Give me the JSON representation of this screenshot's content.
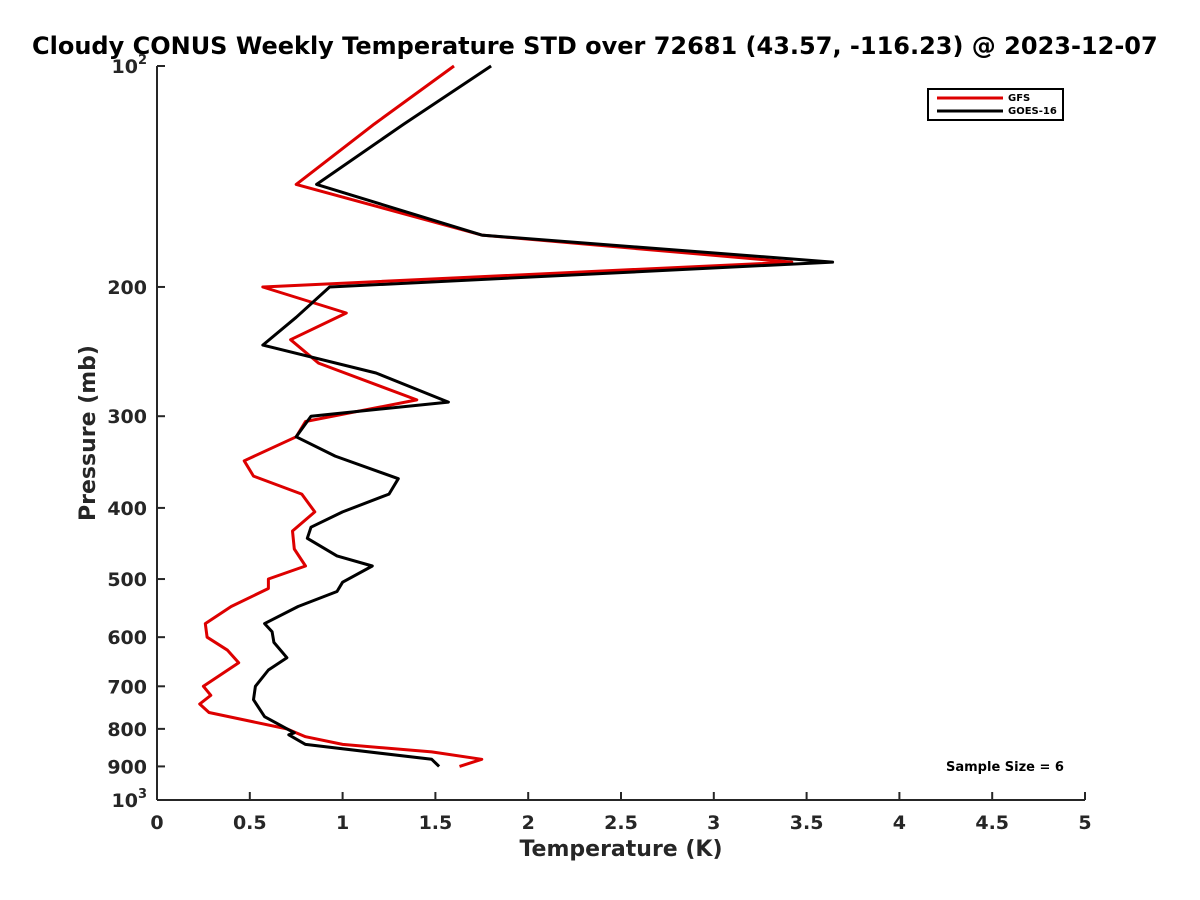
{
  "chart_data": {
    "type": "line",
    "title": "Cloudy CONUS Weekly Temperature STD over 72681 (43.57, -116.23) @ 2023-12-07",
    "xlabel": "Temperature (K)",
    "ylabel": "Pressure (mb)",
    "xlim": [
      0,
      5
    ],
    "ylim": [
      100,
      1000
    ],
    "y_scale": "log",
    "y_direction": "reversed",
    "x_ticks": [
      "0",
      "0.5",
      "1",
      "1.5",
      "2",
      "2.5",
      "3",
      "3.5",
      "4",
      "4.5",
      "5"
    ],
    "y_ticks": [
      {
        "value": 100,
        "label": "10",
        "sup": "2"
      },
      {
        "value": 200,
        "label": "200",
        "sup": ""
      },
      {
        "value": 300,
        "label": "300",
        "sup": ""
      },
      {
        "value": 400,
        "label": "400",
        "sup": ""
      },
      {
        "value": 500,
        "label": "500",
        "sup": ""
      },
      {
        "value": 600,
        "label": "600",
        "sup": ""
      },
      {
        "value": 700,
        "label": "700",
        "sup": ""
      },
      {
        "value": 800,
        "label": "800",
        "sup": ""
      },
      {
        "value": 900,
        "label": "900",
        "sup": ""
      },
      {
        "value": 1000,
        "label": "10",
        "sup": "3"
      }
    ],
    "legend_position": "top-right",
    "grid": false,
    "annotation": "Sample Size = 6",
    "series": [
      {
        "name": "GFS",
        "color": "#dd0000",
        "points": [
          {
            "x": 1.6,
            "p": 100
          },
          {
            "x": 1.17,
            "p": 120
          },
          {
            "x": 0.75,
            "p": 145
          },
          {
            "x": 1.75,
            "p": 170
          },
          {
            "x": 3.42,
            "p": 185
          },
          {
            "x": 0.57,
            "p": 200
          },
          {
            "x": 1.02,
            "p": 217
          },
          {
            "x": 0.72,
            "p": 236
          },
          {
            "x": 0.87,
            "p": 254
          },
          {
            "x": 1.4,
            "p": 285
          },
          {
            "x": 0.8,
            "p": 305
          },
          {
            "x": 0.75,
            "p": 320
          },
          {
            "x": 0.47,
            "p": 345
          },
          {
            "x": 0.52,
            "p": 362
          },
          {
            "x": 0.78,
            "p": 383
          },
          {
            "x": 0.85,
            "p": 405
          },
          {
            "x": 0.73,
            "p": 430
          },
          {
            "x": 0.74,
            "p": 455
          },
          {
            "x": 0.8,
            "p": 480
          },
          {
            "x": 0.6,
            "p": 500
          },
          {
            "x": 0.6,
            "p": 515
          },
          {
            "x": 0.4,
            "p": 545
          },
          {
            "x": 0.26,
            "p": 575
          },
          {
            "x": 0.27,
            "p": 600
          },
          {
            "x": 0.38,
            "p": 625
          },
          {
            "x": 0.44,
            "p": 650
          },
          {
            "x": 0.25,
            "p": 700
          },
          {
            "x": 0.29,
            "p": 720
          },
          {
            "x": 0.23,
            "p": 740
          },
          {
            "x": 0.28,
            "p": 760
          },
          {
            "x": 0.7,
            "p": 800
          },
          {
            "x": 0.8,
            "p": 820
          },
          {
            "x": 1.0,
            "p": 840
          },
          {
            "x": 1.48,
            "p": 860
          },
          {
            "x": 1.75,
            "p": 880
          },
          {
            "x": 1.63,
            "p": 900
          }
        ]
      },
      {
        "name": "GOES-16",
        "color": "#000000",
        "points": [
          {
            "x": 1.8,
            "p": 100
          },
          {
            "x": 1.33,
            "p": 120
          },
          {
            "x": 0.86,
            "p": 145
          },
          {
            "x": 1.75,
            "p": 170
          },
          {
            "x": 3.64,
            "p": 185
          },
          {
            "x": 0.93,
            "p": 200
          },
          {
            "x": 0.75,
            "p": 220
          },
          {
            "x": 0.57,
            "p": 240
          },
          {
            "x": 1.18,
            "p": 262
          },
          {
            "x": 1.57,
            "p": 287
          },
          {
            "x": 0.83,
            "p": 300
          },
          {
            "x": 0.75,
            "p": 320
          },
          {
            "x": 0.96,
            "p": 340
          },
          {
            "x": 1.3,
            "p": 365
          },
          {
            "x": 1.25,
            "p": 383
          },
          {
            "x": 1.0,
            "p": 405
          },
          {
            "x": 0.83,
            "p": 425
          },
          {
            "x": 0.81,
            "p": 440
          },
          {
            "x": 0.97,
            "p": 465
          },
          {
            "x": 1.16,
            "p": 480
          },
          {
            "x": 1.0,
            "p": 505
          },
          {
            "x": 0.97,
            "p": 520
          },
          {
            "x": 0.76,
            "p": 545
          },
          {
            "x": 0.58,
            "p": 575
          },
          {
            "x": 0.62,
            "p": 590
          },
          {
            "x": 0.63,
            "p": 610
          },
          {
            "x": 0.7,
            "p": 640
          },
          {
            "x": 0.6,
            "p": 665
          },
          {
            "x": 0.53,
            "p": 700
          },
          {
            "x": 0.52,
            "p": 730
          },
          {
            "x": 0.58,
            "p": 770
          },
          {
            "x": 0.74,
            "p": 810
          },
          {
            "x": 0.71,
            "p": 815
          },
          {
            "x": 0.8,
            "p": 840
          },
          {
            "x": 1.48,
            "p": 880
          },
          {
            "x": 1.52,
            "p": 900
          }
        ]
      }
    ]
  }
}
